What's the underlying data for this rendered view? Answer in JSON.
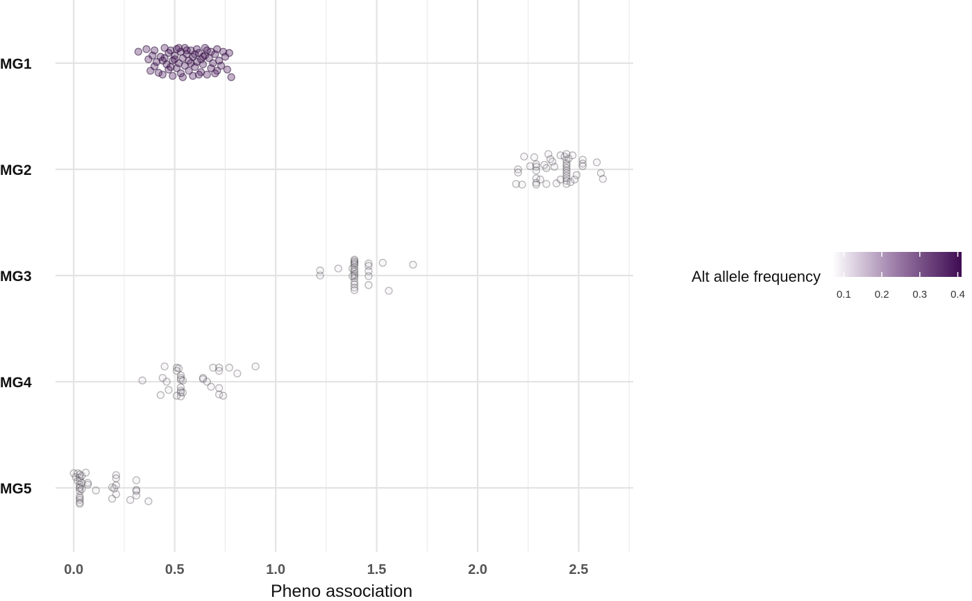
{
  "chart_data": {
    "type": "scatter",
    "title": "",
    "xlabel": "Pheno association",
    "ylabel": "",
    "xlim": [
      -0.09,
      2.77
    ],
    "x_ticks": [
      "0.0",
      "0.5",
      "1.0",
      "1.5",
      "2.0",
      "2.5"
    ],
    "categories": [
      "MG1",
      "MG2",
      "MG3",
      "MG4",
      "MG5"
    ],
    "grid": true,
    "point_style": "open circle, jittered vertically within each category",
    "legend": {
      "title": "Alt allele frequency",
      "position": "right",
      "scale_type": "continuous",
      "range": [
        0.07,
        0.41
      ],
      "ticks": [
        "0.1",
        "0.2",
        "0.3",
        "0.4"
      ],
      "color_low": "#ffffff",
      "color_high": "#3f0c52"
    },
    "groups": [
      {
        "category": "MG1",
        "color_frequency": 0.38,
        "points": [
          [
            0.32,
            0.18
          ],
          [
            0.36,
            0.22
          ],
          [
            0.37,
            0.06
          ],
          [
            0.38,
            -0.12
          ],
          [
            0.39,
            0.12
          ],
          [
            0.4,
            0.2
          ],
          [
            0.4,
            -0.05
          ],
          [
            0.41,
            0.02
          ],
          [
            0.42,
            -0.15
          ],
          [
            0.43,
            0.1
          ],
          [
            0.44,
            -0.18
          ],
          [
            0.45,
            0.24
          ],
          [
            0.45,
            0.08
          ],
          [
            0.46,
            -0.02
          ],
          [
            0.47,
            0.16
          ],
          [
            0.47,
            -0.1
          ],
          [
            0.48,
            0.2
          ],
          [
            0.49,
            0.04
          ],
          [
            0.49,
            -0.2
          ],
          [
            0.5,
            0.12
          ],
          [
            0.51,
            -0.08
          ],
          [
            0.51,
            0.22
          ],
          [
            0.52,
            0.0
          ],
          [
            0.53,
            0.18
          ],
          [
            0.53,
            -0.16
          ],
          [
            0.54,
            0.08
          ],
          [
            0.55,
            -0.04
          ],
          [
            0.55,
            0.24
          ],
          [
            0.56,
            0.14
          ],
          [
            0.57,
            -0.12
          ],
          [
            0.57,
            0.04
          ],
          [
            0.58,
            0.2
          ],
          [
            0.59,
            -0.2
          ],
          [
            0.59,
            0.1
          ],
          [
            0.6,
            -0.06
          ],
          [
            0.61,
            0.22
          ],
          [
            0.61,
            0.02
          ],
          [
            0.62,
            0.16
          ],
          [
            0.63,
            -0.14
          ],
          [
            0.63,
            0.06
          ],
          [
            0.64,
            -0.02
          ],
          [
            0.65,
            0.24
          ],
          [
            0.65,
            0.12
          ],
          [
            0.66,
            -0.18
          ],
          [
            0.67,
            0.08
          ],
          [
            0.68,
            0.18
          ],
          [
            0.68,
            -0.08
          ],
          [
            0.69,
            0.0
          ],
          [
            0.7,
            0.14
          ],
          [
            0.71,
            -0.12
          ],
          [
            0.71,
            0.22
          ],
          [
            0.72,
            0.04
          ],
          [
            0.73,
            -0.04
          ],
          [
            0.74,
            0.18
          ],
          [
            0.75,
            0.1
          ],
          [
            0.76,
            -0.1
          ],
          [
            0.77,
            0.16
          ],
          [
            0.78,
            -0.22
          ],
          [
            0.5,
            0.06
          ],
          [
            0.56,
            0.2
          ],
          [
            0.62,
            -0.18
          ],
          [
            0.58,
            0.0
          ],
          [
            0.54,
            -0.22
          ],
          [
            0.66,
            0.2
          ],
          [
            0.48,
            -0.06
          ],
          [
            0.7,
            -0.16
          ],
          [
            0.6,
            0.14
          ],
          [
            0.52,
            0.24
          ],
          [
            0.64,
            0.1
          ],
          [
            0.44,
            0.04
          ]
        ]
      },
      {
        "category": "MG2",
        "color_frequency": 0.17,
        "points": [
          [
            2.19,
            -0.23
          ],
          [
            2.2,
            0.0
          ],
          [
            2.2,
            -0.05
          ],
          [
            2.22,
            -0.24
          ],
          [
            2.23,
            0.2
          ],
          [
            2.26,
            0.05
          ],
          [
            2.28,
            0.19
          ],
          [
            2.29,
            0.08
          ],
          [
            2.29,
            0.04
          ],
          [
            2.29,
            -0.02
          ],
          [
            2.29,
            -0.14
          ],
          [
            2.29,
            -0.21
          ],
          [
            2.29,
            -0.24
          ],
          [
            2.31,
            -0.16
          ],
          [
            2.33,
            0.07
          ],
          [
            2.34,
            0.02
          ],
          [
            2.34,
            -0.23
          ],
          [
            2.35,
            0.24
          ],
          [
            2.36,
            0.16
          ],
          [
            2.37,
            0.12
          ],
          [
            2.38,
            0.04
          ],
          [
            2.39,
            -0.22
          ],
          [
            2.41,
            -0.16
          ],
          [
            2.41,
            0.22
          ],
          [
            2.43,
            0.2
          ],
          [
            2.44,
            0.24
          ],
          [
            2.44,
            0.14
          ],
          [
            2.44,
            0.09
          ],
          [
            2.44,
            0.06
          ],
          [
            2.44,
            0.02
          ],
          [
            2.44,
            -0.02
          ],
          [
            2.44,
            -0.06
          ],
          [
            2.44,
            -0.1
          ],
          [
            2.44,
            -0.14
          ],
          [
            2.44,
            -0.18
          ],
          [
            2.44,
            -0.23
          ],
          [
            2.45,
            0.17
          ],
          [
            2.46,
            -0.2
          ],
          [
            2.47,
            0.22
          ],
          [
            2.48,
            -0.16
          ],
          [
            2.49,
            -0.09
          ],
          [
            2.52,
            0.15
          ],
          [
            2.52,
            0.09
          ],
          [
            2.52,
            0.05
          ],
          [
            2.59,
            0.11
          ],
          [
            2.61,
            -0.06
          ],
          [
            2.62,
            -0.15
          ]
        ]
      },
      {
        "category": "MG3",
        "color_frequency": 0.17,
        "points": [
          [
            1.22,
            0.08
          ],
          [
            1.22,
            0.0
          ],
          [
            1.31,
            0.11
          ],
          [
            1.38,
            0.11
          ],
          [
            1.39,
            0.25
          ],
          [
            1.39,
            0.23
          ],
          [
            1.39,
            0.21
          ],
          [
            1.39,
            0.19
          ],
          [
            1.39,
            0.17
          ],
          [
            1.39,
            0.13
          ],
          [
            1.39,
            0.09
          ],
          [
            1.39,
            0.06
          ],
          [
            1.39,
            0.02
          ],
          [
            1.39,
            -0.01
          ],
          [
            1.39,
            -0.04
          ],
          [
            1.39,
            -0.1
          ],
          [
            1.39,
            -0.14
          ],
          [
            1.39,
            -0.19
          ],
          [
            1.39,
            -0.23
          ],
          [
            1.38,
            -0.01
          ],
          [
            1.46,
            0.19
          ],
          [
            1.46,
            0.15
          ],
          [
            1.46,
            0.07
          ],
          [
            1.46,
            -0.01
          ],
          [
            1.46,
            -0.15
          ],
          [
            1.53,
            0.2
          ],
          [
            1.56,
            -0.24
          ],
          [
            1.68,
            0.17
          ]
        ]
      },
      {
        "category": "MG4",
        "color_frequency": 0.17,
        "points": [
          [
            0.34,
            0.02
          ],
          [
            0.43,
            -0.21
          ],
          [
            0.44,
            0.06
          ],
          [
            0.45,
            0.24
          ],
          [
            0.46,
            0.0
          ],
          [
            0.47,
            -0.13
          ],
          [
            0.51,
            0.22
          ],
          [
            0.51,
            0.17
          ],
          [
            0.51,
            -0.22
          ],
          [
            0.52,
            0.21
          ],
          [
            0.53,
            0.1
          ],
          [
            0.53,
            0.06
          ],
          [
            0.53,
            0.03
          ],
          [
            0.53,
            -0.09
          ],
          [
            0.53,
            -0.14
          ],
          [
            0.53,
            -0.17
          ],
          [
            0.53,
            -0.23
          ],
          [
            0.54,
            0.02
          ],
          [
            0.54,
            -0.17
          ],
          [
            0.64,
            0.06
          ],
          [
            0.64,
            0.04
          ],
          [
            0.66,
            0.0
          ],
          [
            0.68,
            -0.08
          ],
          [
            0.69,
            0.22
          ],
          [
            0.72,
            0.22
          ],
          [
            0.72,
            0.17
          ],
          [
            0.72,
            -0.1
          ],
          [
            0.72,
            -0.2
          ],
          [
            0.74,
            -0.22
          ],
          [
            0.77,
            0.22
          ],
          [
            0.81,
            0.13
          ],
          [
            0.9,
            0.24
          ]
        ]
      },
      {
        "category": "MG5",
        "color_frequency": 0.17,
        "points": [
          [
            0.0,
            0.23
          ],
          [
            0.01,
            0.17
          ],
          [
            0.02,
            0.23
          ],
          [
            0.02,
            0.11
          ],
          [
            0.03,
            0.21
          ],
          [
            0.03,
            0.16
          ],
          [
            0.03,
            0.11
          ],
          [
            0.03,
            0.05
          ],
          [
            0.03,
            0.01
          ],
          [
            0.03,
            -0.01
          ],
          [
            0.03,
            -0.05
          ],
          [
            0.03,
            -0.13
          ],
          [
            0.03,
            -0.16
          ],
          [
            0.03,
            -0.19
          ],
          [
            0.03,
            -0.23
          ],
          [
            0.03,
            -0.25
          ],
          [
            0.04,
            0.19
          ],
          [
            0.04,
            0.08
          ],
          [
            0.04,
            -0.02
          ],
          [
            0.06,
            0.24
          ],
          [
            0.07,
            0.08
          ],
          [
            0.07,
            0.05
          ],
          [
            0.11,
            -0.04
          ],
          [
            0.19,
            -0.17
          ],
          [
            0.19,
            0.01
          ],
          [
            0.2,
            -0.01
          ],
          [
            0.21,
            0.2
          ],
          [
            0.21,
            0.15
          ],
          [
            0.21,
            0.04
          ],
          [
            0.21,
            -0.1
          ],
          [
            0.28,
            -0.19
          ],
          [
            0.31,
            -0.03
          ],
          [
            0.31,
            -0.05
          ],
          [
            0.31,
            -0.12
          ],
          [
            0.31,
            0.12
          ],
          [
            0.37,
            -0.21
          ]
        ]
      }
    ]
  }
}
